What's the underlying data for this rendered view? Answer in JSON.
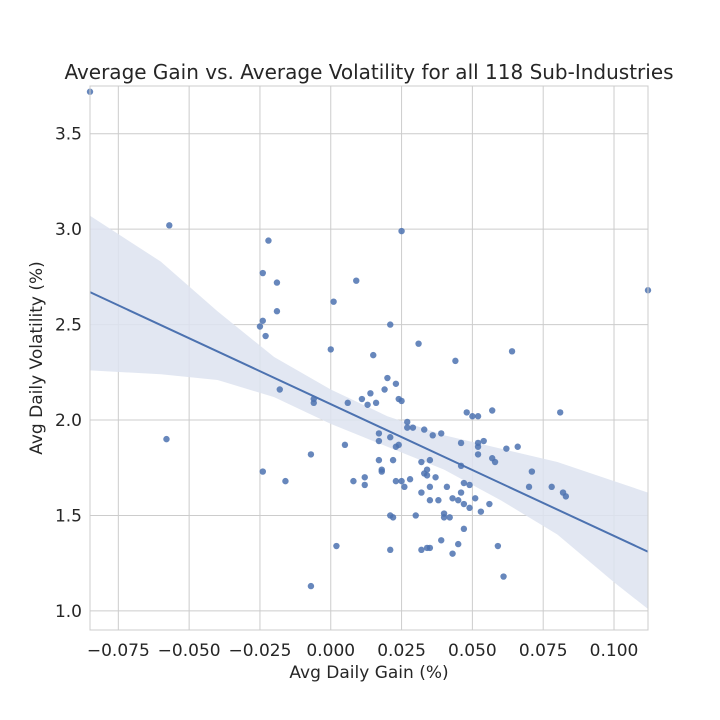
{
  "chart_data": {
    "type": "scatter",
    "title": "Average Gain vs. Average Volatility for all 118 Sub-Industries",
    "xlabel": "Avg Daily Gain (%)",
    "ylabel": "Avg Daily Volatility (%)",
    "xlim": [
      -0.085,
      0.112
    ],
    "ylim": [
      0.9,
      3.75
    ],
    "xticks": [
      -0.075,
      -0.05,
      -0.025,
      0.0,
      0.025,
      0.05,
      0.075,
      0.1
    ],
    "xtick_labels": [
      "−0.075",
      "−0.050",
      "−0.025",
      "0.000",
      "0.025",
      "0.050",
      "0.075",
      "0.100"
    ],
    "yticks": [
      1.0,
      1.5,
      2.0,
      2.5,
      3.0,
      3.5
    ],
    "ytick_labels": [
      "1.0",
      "1.5",
      "2.0",
      "2.5",
      "3.0",
      "3.5"
    ],
    "grid": true,
    "colors": {
      "points": "#4c72b0",
      "line": "#4c72b0",
      "band": "#dde3f0"
    },
    "points": [
      {
        "x": -0.085,
        "y": 3.72
      },
      {
        "x": -0.057,
        "y": 3.02
      },
      {
        "x": -0.058,
        "y": 1.9
      },
      {
        "x": -0.022,
        "y": 2.94
      },
      {
        "x": -0.024,
        "y": 2.77
      },
      {
        "x": -0.019,
        "y": 2.72
      },
      {
        "x": -0.019,
        "y": 2.57
      },
      {
        "x": -0.024,
        "y": 2.52
      },
      {
        "x": -0.025,
        "y": 2.49
      },
      {
        "x": -0.023,
        "y": 2.44
      },
      {
        "x": -0.018,
        "y": 2.16
      },
      {
        "x": -0.024,
        "y": 1.73
      },
      {
        "x": -0.016,
        "y": 1.68
      },
      {
        "x": -0.006,
        "y": 2.11
      },
      {
        "x": -0.006,
        "y": 2.09
      },
      {
        "x": -0.007,
        "y": 1.82
      },
      {
        "x": -0.007,
        "y": 1.13
      },
      {
        "x": 0.001,
        "y": 2.62
      },
      {
        "x": 0.0,
        "y": 2.37
      },
      {
        "x": 0.002,
        "y": 1.34
      },
      {
        "x": 0.009,
        "y": 2.73
      },
      {
        "x": 0.005,
        "y": 1.87
      },
      {
        "x": 0.006,
        "y": 2.09
      },
      {
        "x": 0.008,
        "y": 1.68
      },
      {
        "x": 0.011,
        "y": 2.11
      },
      {
        "x": 0.013,
        "y": 2.08
      },
      {
        "x": 0.014,
        "y": 2.14
      },
      {
        "x": 0.016,
        "y": 2.09
      },
      {
        "x": 0.015,
        "y": 2.34
      },
      {
        "x": 0.012,
        "y": 1.7
      },
      {
        "x": 0.012,
        "y": 1.66
      },
      {
        "x": 0.017,
        "y": 1.93
      },
      {
        "x": 0.017,
        "y": 1.89
      },
      {
        "x": 0.017,
        "y": 1.79
      },
      {
        "x": 0.018,
        "y": 1.74
      },
      {
        "x": 0.018,
        "y": 1.73
      },
      {
        "x": 0.019,
        "y": 2.16
      },
      {
        "x": 0.02,
        "y": 2.22
      },
      {
        "x": 0.021,
        "y": 2.5
      },
      {
        "x": 0.021,
        "y": 1.91
      },
      {
        "x": 0.022,
        "y": 1.79
      },
      {
        "x": 0.021,
        "y": 1.5
      },
      {
        "x": 0.022,
        "y": 1.49
      },
      {
        "x": 0.021,
        "y": 1.32
      },
      {
        "x": 0.023,
        "y": 2.19
      },
      {
        "x": 0.024,
        "y": 2.11
      },
      {
        "x": 0.025,
        "y": 2.1
      },
      {
        "x": 0.025,
        "y": 2.99
      },
      {
        "x": 0.023,
        "y": 1.86
      },
      {
        "x": 0.024,
        "y": 1.87
      },
      {
        "x": 0.023,
        "y": 1.68
      },
      {
        "x": 0.025,
        "y": 1.68
      },
      {
        "x": 0.026,
        "y": 1.65
      },
      {
        "x": 0.027,
        "y": 1.99
      },
      {
        "x": 0.027,
        "y": 1.96
      },
      {
        "x": 0.029,
        "y": 1.96
      },
      {
        "x": 0.028,
        "y": 1.69
      },
      {
        "x": 0.03,
        "y": 1.5
      },
      {
        "x": 0.031,
        "y": 2.4
      },
      {
        "x": 0.032,
        "y": 1.78
      },
      {
        "x": 0.032,
        "y": 1.62
      },
      {
        "x": 0.033,
        "y": 1.95
      },
      {
        "x": 0.033,
        "y": 1.72
      },
      {
        "x": 0.034,
        "y": 1.74
      },
      {
        "x": 0.034,
        "y": 1.71
      },
      {
        "x": 0.035,
        "y": 1.79
      },
      {
        "x": 0.035,
        "y": 1.65
      },
      {
        "x": 0.035,
        "y": 1.58
      },
      {
        "x": 0.035,
        "y": 1.33
      },
      {
        "x": 0.034,
        "y": 1.33
      },
      {
        "x": 0.032,
        "y": 1.32
      },
      {
        "x": 0.036,
        "y": 1.92
      },
      {
        "x": 0.037,
        "y": 1.7
      },
      {
        "x": 0.038,
        "y": 1.58
      },
      {
        "x": 0.039,
        "y": 1.93
      },
      {
        "x": 0.039,
        "y": 1.37
      },
      {
        "x": 0.04,
        "y": 1.51
      },
      {
        "x": 0.04,
        "y": 1.49
      },
      {
        "x": 0.041,
        "y": 1.65
      },
      {
        "x": 0.042,
        "y": 1.49
      },
      {
        "x": 0.043,
        "y": 1.59
      },
      {
        "x": 0.043,
        "y": 1.3
      },
      {
        "x": 0.044,
        "y": 2.31
      },
      {
        "x": 0.045,
        "y": 1.58
      },
      {
        "x": 0.045,
        "y": 1.35
      },
      {
        "x": 0.046,
        "y": 1.88
      },
      {
        "x": 0.046,
        "y": 1.76
      },
      {
        "x": 0.046,
        "y": 1.62
      },
      {
        "x": 0.047,
        "y": 1.67
      },
      {
        "x": 0.047,
        "y": 1.56
      },
      {
        "x": 0.047,
        "y": 1.43
      },
      {
        "x": 0.048,
        "y": 2.04
      },
      {
        "x": 0.049,
        "y": 1.66
      },
      {
        "x": 0.049,
        "y": 1.54
      },
      {
        "x": 0.05,
        "y": 2.02
      },
      {
        "x": 0.051,
        "y": 1.59
      },
      {
        "x": 0.052,
        "y": 2.02
      },
      {
        "x": 0.052,
        "y": 1.88
      },
      {
        "x": 0.052,
        "y": 1.86
      },
      {
        "x": 0.052,
        "y": 1.82
      },
      {
        "x": 0.053,
        "y": 1.52
      },
      {
        "x": 0.054,
        "y": 1.89
      },
      {
        "x": 0.056,
        "y": 1.56
      },
      {
        "x": 0.057,
        "y": 2.05
      },
      {
        "x": 0.057,
        "y": 1.8
      },
      {
        "x": 0.058,
        "y": 1.78
      },
      {
        "x": 0.059,
        "y": 1.34
      },
      {
        "x": 0.061,
        "y": 1.18
      },
      {
        "x": 0.062,
        "y": 1.85
      },
      {
        "x": 0.064,
        "y": 2.36
      },
      {
        "x": 0.066,
        "y": 1.86
      },
      {
        "x": 0.07,
        "y": 1.65
      },
      {
        "x": 0.071,
        "y": 1.73
      },
      {
        "x": 0.078,
        "y": 1.65
      },
      {
        "x": 0.081,
        "y": 2.04
      },
      {
        "x": 0.082,
        "y": 1.62
      },
      {
        "x": 0.083,
        "y": 1.6
      },
      {
        "x": 0.112,
        "y": 2.68
      }
    ],
    "regression": {
      "x": [
        -0.085,
        0.112
      ],
      "y": [
        2.67,
        1.31
      ]
    },
    "confidence_band": {
      "x": [
        -0.085,
        -0.06,
        -0.04,
        -0.02,
        0.0,
        0.02,
        0.04,
        0.06,
        0.08,
        0.1,
        0.112
      ],
      "upper": [
        3.07,
        2.83,
        2.57,
        2.33,
        2.16,
        2.02,
        1.92,
        1.85,
        1.78,
        1.68,
        1.62
      ],
      "lower": [
        2.26,
        2.24,
        2.21,
        2.12,
        1.98,
        1.86,
        1.74,
        1.58,
        1.4,
        1.15,
        1.01
      ]
    }
  }
}
